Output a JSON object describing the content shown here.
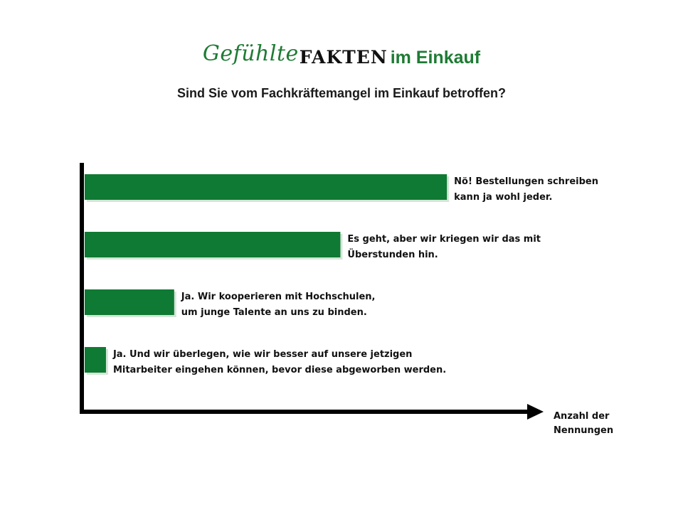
{
  "brand": {
    "word1": "Gefühlte",
    "word2": "FAKTEN",
    "word3": "im Einkauf"
  },
  "colors": {
    "bar": "#0f7a33",
    "bar_shadow": "#d4e6d8",
    "axis": "#000000",
    "brand_green": "#1e7b34"
  },
  "chart_data": {
    "type": "bar",
    "orientation": "horizontal",
    "title": "Sind Sie vom Fachkräftemangel im Einkauf betroffen?",
    "xlabel": [
      "Anzahl der",
      "Nennungen"
    ],
    "ylabel": "",
    "xlim": [
      0,
      100
    ],
    "grid": false,
    "legend": "none",
    "categories": [
      [
        "Nö! Bestellungen schreiben",
        "kann ja wohl jeder."
      ],
      [
        "Es geht, aber wir kriegen wir das mit",
        "Überstunden hin."
      ],
      [
        "Ja. Wir kooperieren mit Hochschulen,",
        "um junge Talente an uns zu binden."
      ],
      [
        "Ja. Und wir überlegen, wie wir besser auf unsere jetzigen",
        "Mitarbeiter eingehen können, bevor diese abgeworben werden."
      ]
    ],
    "values": [
      85,
      60,
      21,
      5
    ]
  }
}
